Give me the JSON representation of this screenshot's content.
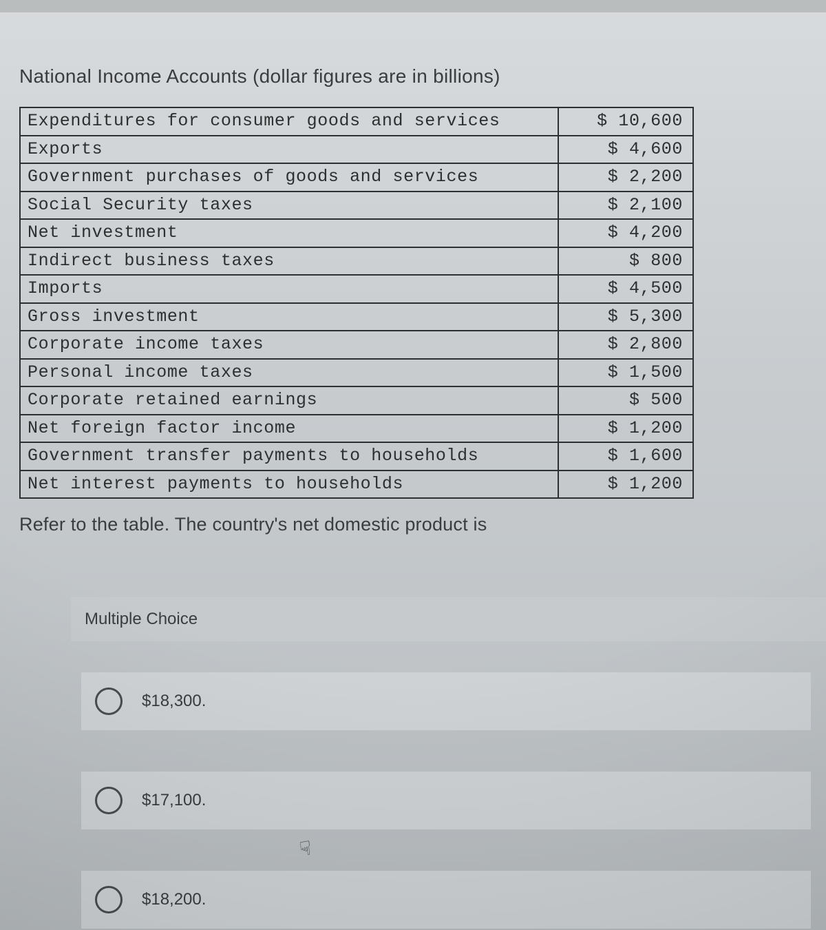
{
  "title": "National Income Accounts (dollar figures are in billions)",
  "table": {
    "rows": [
      {
        "label": "Expenditures for consumer goods and services",
        "value": "$ 10,600"
      },
      {
        "label": "Exports",
        "value": "$ 4,600"
      },
      {
        "label": "Government purchases of goods and services",
        "value": "$ 2,200"
      },
      {
        "label": "Social Security taxes",
        "value": "$ 2,100"
      },
      {
        "label": "Net investment",
        "value": "$ 4,200"
      },
      {
        "label": "Indirect business taxes",
        "value": "$ 800"
      },
      {
        "label": "Imports",
        "value": "$ 4,500"
      },
      {
        "label": "Gross investment",
        "value": "$ 5,300"
      },
      {
        "label": "Corporate income taxes",
        "value": "$ 2,800"
      },
      {
        "label": "Personal income taxes",
        "value": "$ 1,500"
      },
      {
        "label": "Corporate retained earnings",
        "value": "$ 500"
      },
      {
        "label": "Net foreign factor income",
        "value": "$ 1,200"
      },
      {
        "label": "Government transfer payments to households",
        "value": "$ 1,600"
      },
      {
        "label": "Net interest payments to households",
        "value": "$ 1,200"
      }
    ]
  },
  "question_followup": "Refer to the table. The country's net domestic product is",
  "mc_header": "Multiple Choice",
  "choices": [
    {
      "label": "$18,300."
    },
    {
      "label": "$17,100."
    },
    {
      "label": "$18,200."
    }
  ],
  "cursor_glyph": "☟"
}
